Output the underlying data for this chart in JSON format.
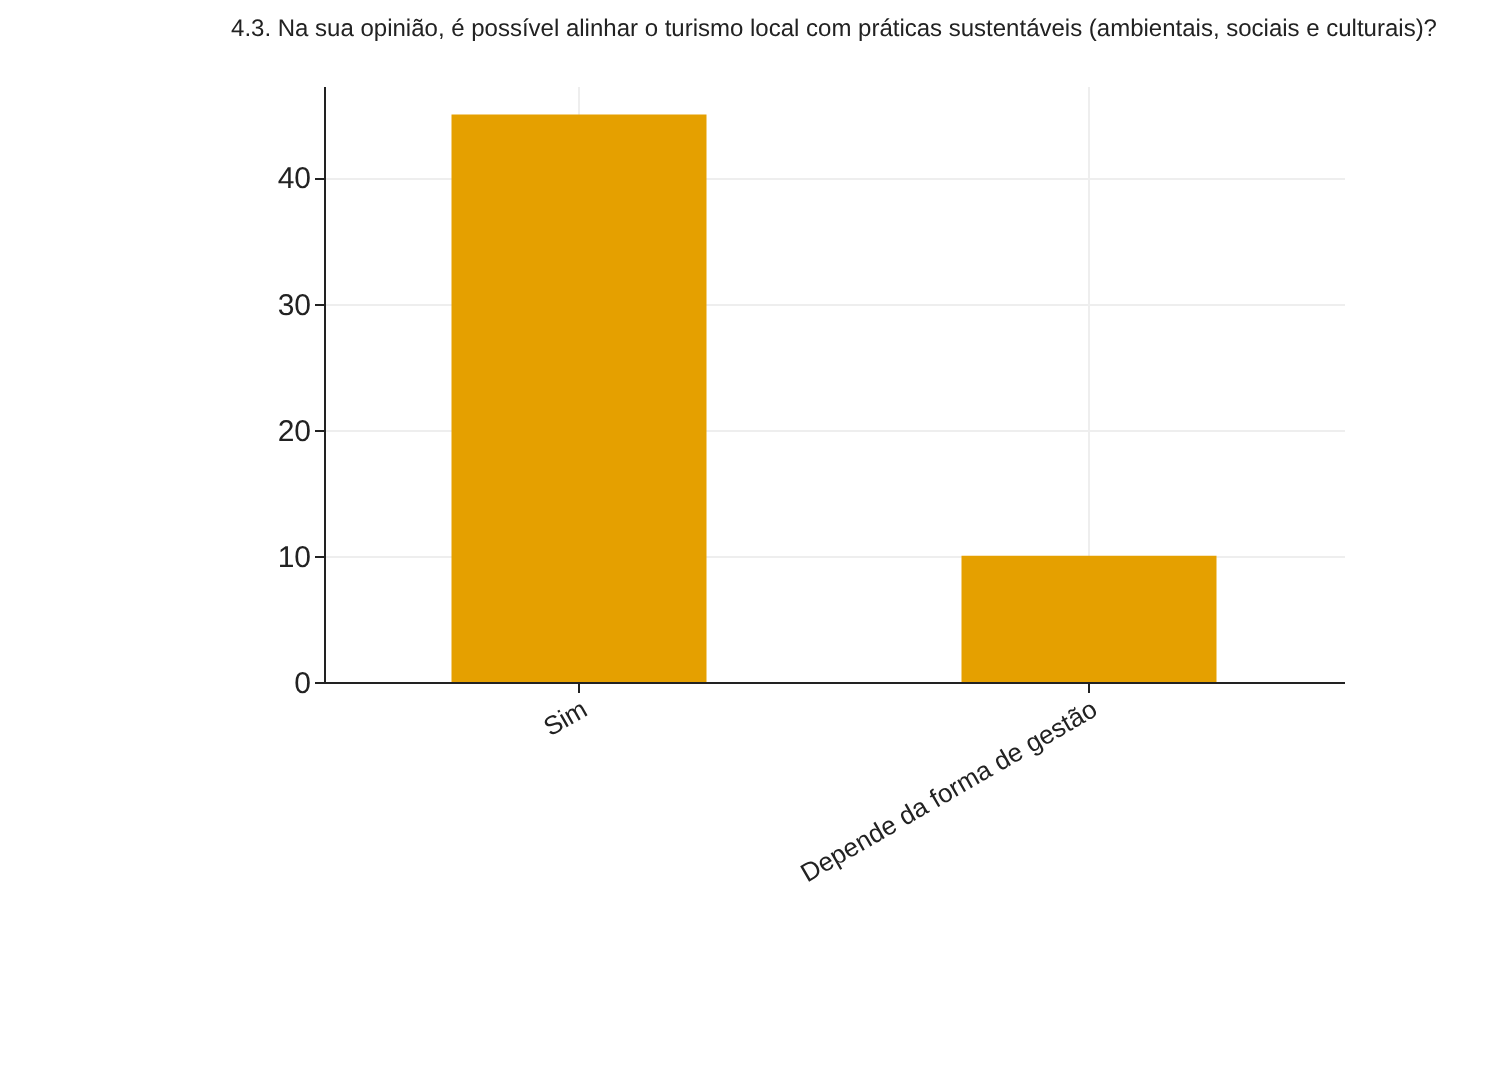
{
  "chart_data": {
    "type": "bar",
    "title": "4.3. Na sua opinião, é possível alinhar o turismo local com práticas sustentáveis (ambientais, sociais e culturais)?",
    "categories": [
      "Sim",
      "Depende da forma de gestão"
    ],
    "values": [
      45,
      10
    ],
    "color": "#e5a000",
    "ylim": [
      0,
      47.25
    ],
    "yticks": [
      0,
      10,
      20,
      30,
      40
    ],
    "grid": true
  }
}
